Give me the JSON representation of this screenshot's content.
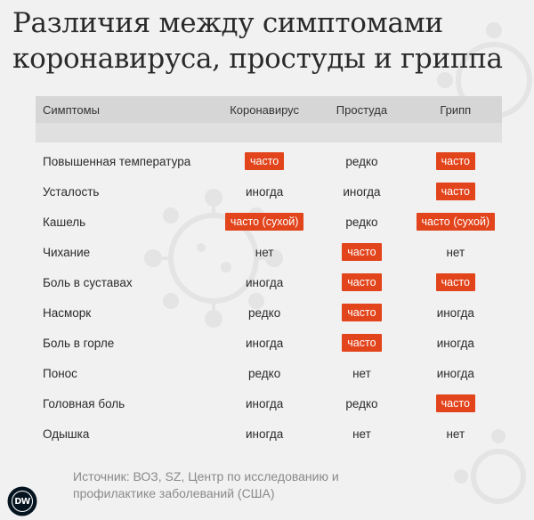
{
  "title": {
    "line1": "Различия между симптомами",
    "line2": "коронавируса, простуды и гриппа"
  },
  "table": {
    "headers": [
      "Симптомы",
      "Коронавирус",
      "Простуда",
      "Грипп"
    ],
    "rows": [
      {
        "symptom": "Повышенная температура",
        "corona": "часто",
        "corona_hl": true,
        "cold": "редко",
        "cold_hl": false,
        "flu": "часто",
        "flu_hl": true
      },
      {
        "symptom": "Усталость",
        "corona": "иногда",
        "corona_hl": false,
        "cold": "иногда",
        "cold_hl": false,
        "flu": "часто",
        "flu_hl": true
      },
      {
        "symptom": "Кашель",
        "corona": "часто (сухой)",
        "corona_hl": true,
        "cold": "редко",
        "cold_hl": false,
        "flu": "часто (сухой)",
        "flu_hl": true
      },
      {
        "symptom": "Чихание",
        "corona": "нет",
        "corona_hl": false,
        "cold": "часто",
        "cold_hl": true,
        "flu": "нет",
        "flu_hl": false
      },
      {
        "symptom": "Боль в суставах",
        "corona": "иногда",
        "corona_hl": false,
        "cold": "часто",
        "cold_hl": true,
        "flu": "часто",
        "flu_hl": true
      },
      {
        "symptom": "Насморк",
        "corona": "редко",
        "corona_hl": false,
        "cold": "часто",
        "cold_hl": true,
        "flu": "иногда",
        "flu_hl": false
      },
      {
        "symptom": "Боль в горле",
        "corona": "иногда",
        "corona_hl": false,
        "cold": "часто",
        "cold_hl": true,
        "flu": "иногда",
        "flu_hl": false
      },
      {
        "symptom": "Понос",
        "corona": "редко",
        "corona_hl": false,
        "cold": "нет",
        "cold_hl": false,
        "flu": "иногда",
        "flu_hl": false
      },
      {
        "symptom": "Головная боль",
        "corona": "иногда",
        "corona_hl": false,
        "cold": "редко",
        "cold_hl": false,
        "flu": "часто",
        "flu_hl": true
      },
      {
        "symptom": "Одышка",
        "corona": "иногда",
        "corona_hl": false,
        "cold": "нет",
        "cold_hl": false,
        "flu": "нет",
        "flu_hl": false
      }
    ]
  },
  "source": {
    "line1": "Источник: ВОЗ, SZ, Центр по исследованию и",
    "line2": "профилактике заболеваний (США)"
  },
  "logo": {
    "text": "DW"
  },
  "colors": {
    "highlight": "#e2441c",
    "background": "#f1f1f1",
    "header": "#d6d6d6"
  }
}
